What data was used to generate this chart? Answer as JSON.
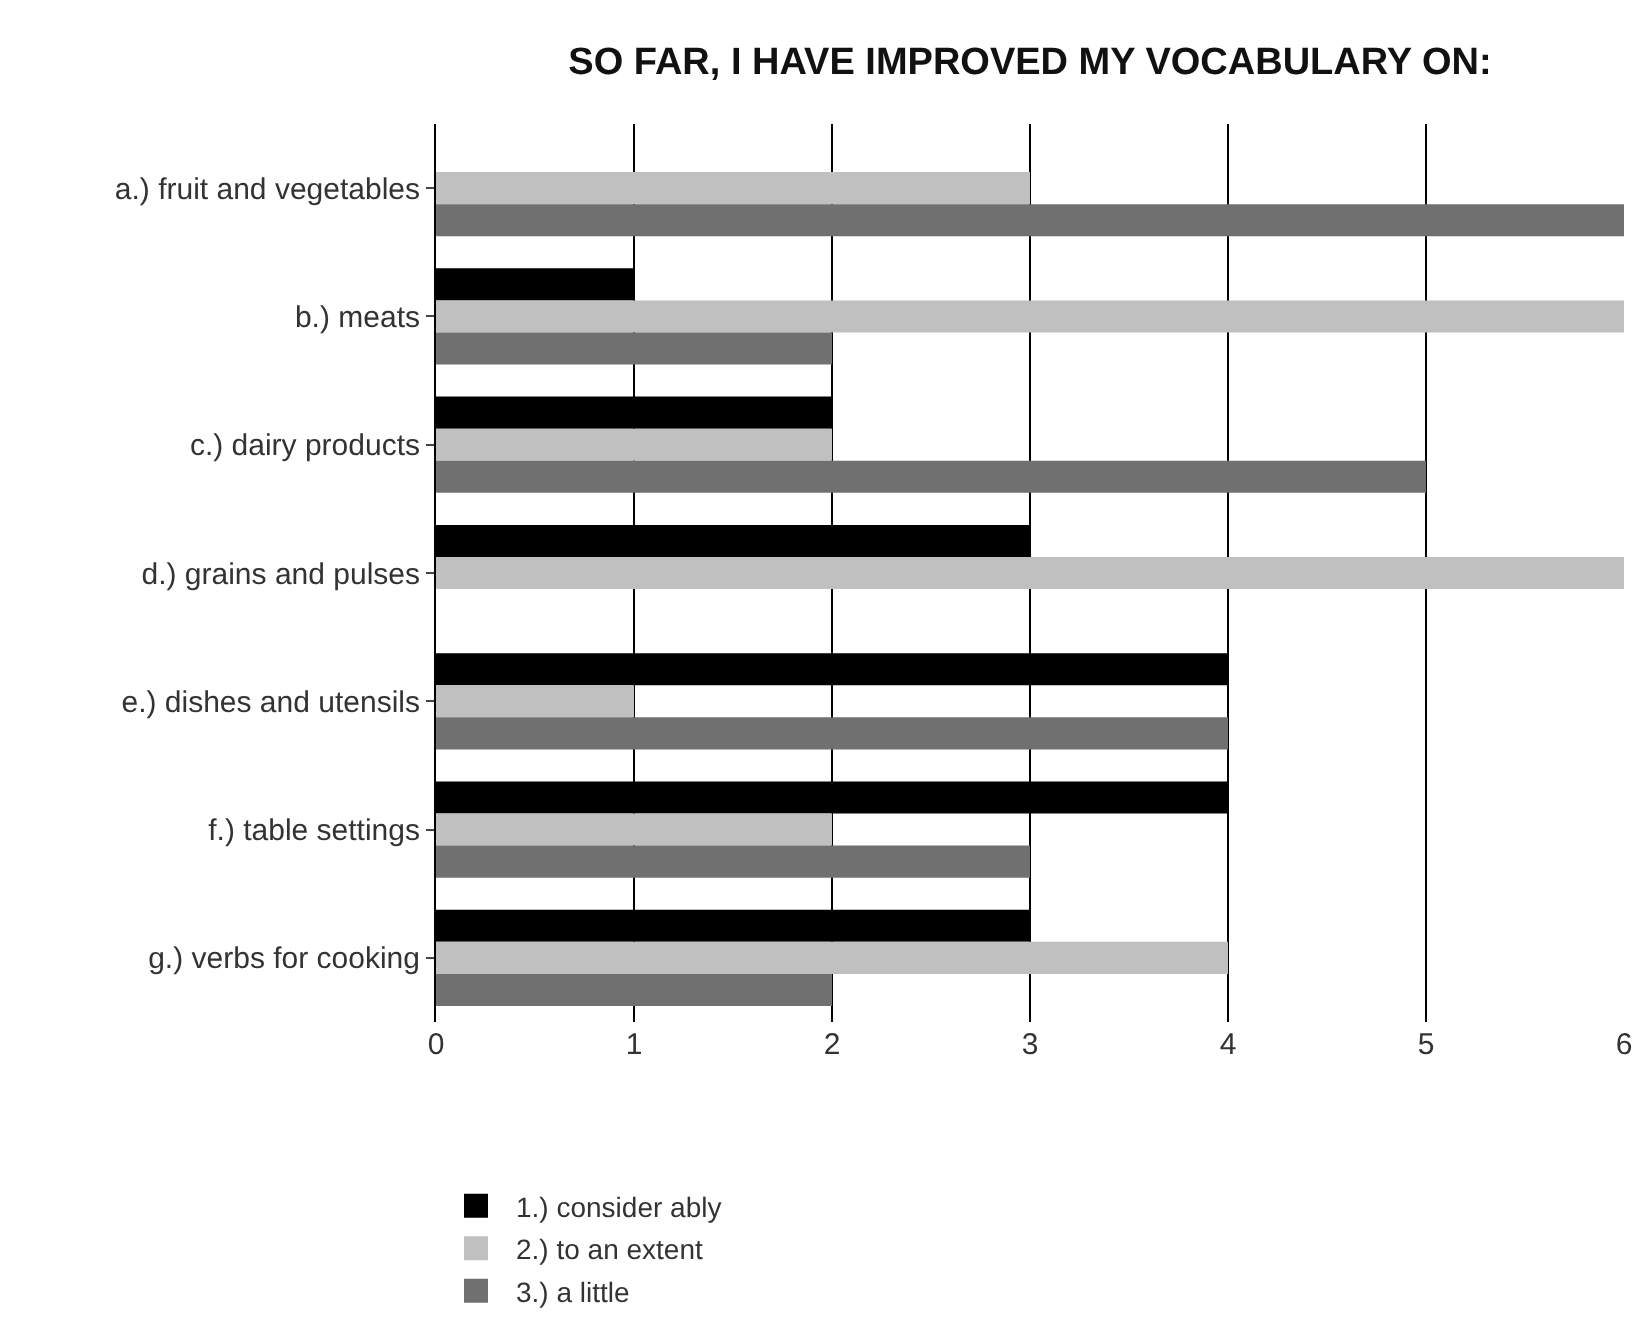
{
  "chart_data": {
    "type": "bar",
    "orientation": "horizontal",
    "title": "SO FAR, I HAVE IMPROVED MY VOCABULARY ON:",
    "categories": [
      "a.) fruit and vegetables",
      "b.) meats",
      "c.) dairy products",
      "d.) grains and pulses",
      "e.) dishes and utensils",
      "f.) table settings",
      "g.) verbs for cooking"
    ],
    "series": [
      {
        "name": "1.) consider ably",
        "color": "#000000",
        "values": [
          0,
          1,
          2,
          3,
          4,
          4,
          3
        ]
      },
      {
        "name": "2.) to an extent",
        "color": "#c0c0c0",
        "values": [
          3,
          6,
          2,
          6,
          1,
          2,
          4
        ]
      },
      {
        "name": "3.) a little",
        "color": "#707070",
        "values": [
          6,
          2,
          5,
          0,
          4,
          3,
          2
        ]
      }
    ],
    "xlim": [
      0,
      6
    ],
    "xticks": [
      0,
      1,
      2,
      3,
      4,
      5,
      6
    ],
    "grid": "x",
    "legend": "bottom left"
  }
}
